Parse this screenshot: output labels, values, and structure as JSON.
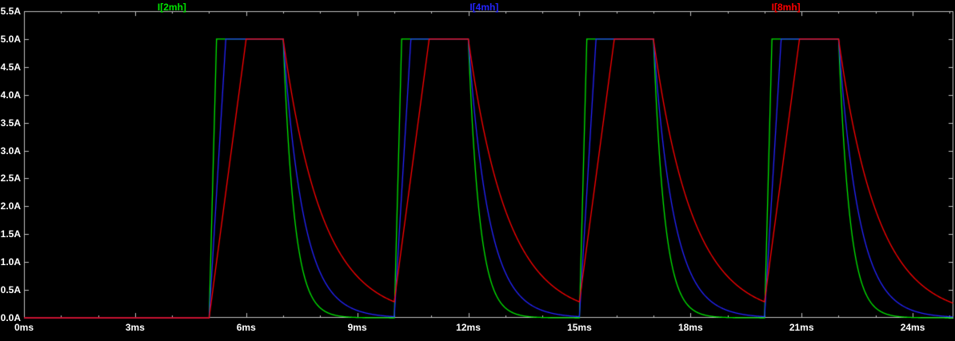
{
  "chart_data": {
    "type": "line",
    "title": "",
    "grid": false,
    "legend_position": "top",
    "background": "#000000",
    "axis_color": "#c0c0c0",
    "label_color": "#ffffff",
    "xlim": [
      0,
      25.1
    ],
    "ylim": [
      0,
      5.5
    ],
    "x_unit": "ms",
    "y_unit": "A",
    "x_ticks": [
      {
        "value": 0,
        "label": "0ms"
      },
      {
        "value": 3,
        "label": "3ms"
      },
      {
        "value": 6,
        "label": "6ms"
      },
      {
        "value": 9,
        "label": "9ms"
      },
      {
        "value": 12,
        "label": "12ms"
      },
      {
        "value": 15,
        "label": "15ms"
      },
      {
        "value": 18,
        "label": "18ms"
      },
      {
        "value": 21,
        "label": "21ms"
      },
      {
        "value": 24,
        "label": "24ms"
      }
    ],
    "x_minor_step": 1,
    "y_ticks": [
      {
        "value": 0.0,
        "label": "0.0A"
      },
      {
        "value": 0.5,
        "label": "0.5A"
      },
      {
        "value": 1.0,
        "label": "1.0A"
      },
      {
        "value": 1.5,
        "label": "1.5A"
      },
      {
        "value": 2.0,
        "label": "2.0A"
      },
      {
        "value": 2.5,
        "label": "2.5A"
      },
      {
        "value": 3.0,
        "label": "3.0A"
      },
      {
        "value": 3.5,
        "label": "3.5A"
      },
      {
        "value": 4.0,
        "label": "4.0A"
      },
      {
        "value": 4.5,
        "label": "4.5A"
      },
      {
        "value": 5.0,
        "label": "5.0A"
      },
      {
        "value": 5.5,
        "label": "5.5A"
      }
    ],
    "series": [
      {
        "name": "I[2mh]",
        "color": "#00e600",
        "rise_ms": 0.2,
        "tau_ms": 0.3
      },
      {
        "name": "I[4mh]",
        "color": "#2424ff",
        "rise_ms": 0.45,
        "tau_ms": 0.55
      },
      {
        "name": "I[8mh]",
        "color": "#ff0000",
        "rise_ms": 1.0,
        "tau_ms": 1.05
      }
    ],
    "pulse_model": {
      "first_rise_ms": 5,
      "period_ms": 5,
      "on_time_ms": 2,
      "decay_time_ms": 3,
      "peak_A": 5.0,
      "baseline_A": 0.0,
      "num_pulses": 4
    }
  }
}
